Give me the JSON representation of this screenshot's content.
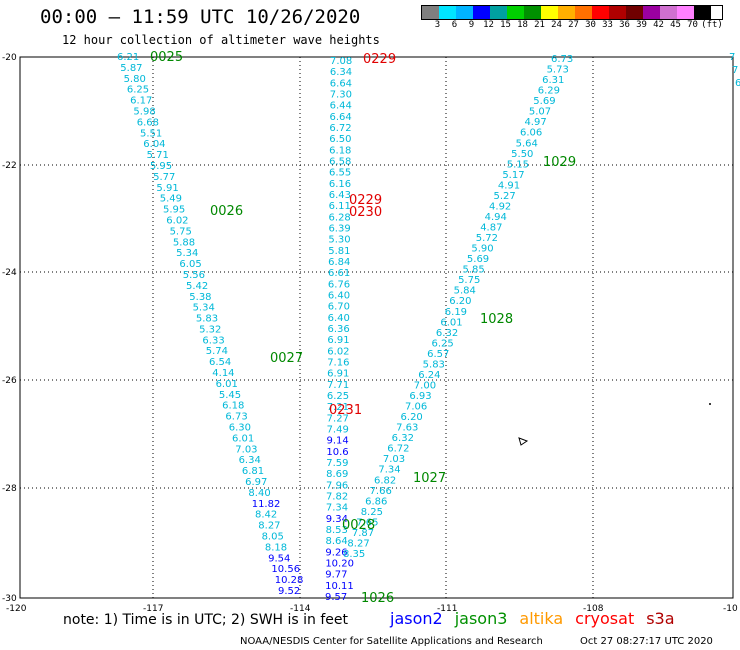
{
  "header": {
    "title": "00:00 – 11:59 UTC 10/26/2020",
    "subtitle": "12 hour collection of altimeter wave heights"
  },
  "colorbar": {
    "colors": [
      "#7f7f7f",
      "#00e5ff",
      "#00b4ff",
      "#0000ff",
      "#00a0a0",
      "#00d000",
      "#009000",
      "#ffff00",
      "#ffb000",
      "#ff7000",
      "#ff0000",
      "#b00000",
      "#700000",
      "#9b00a0",
      "#d070d0",
      "#ff80ff",
      "#000000"
    ],
    "ticks": [
      "3",
      "6",
      "9",
      "12",
      "15",
      "18",
      "21",
      "24",
      "27",
      "30",
      "33",
      "36",
      "39",
      "42",
      "45",
      "70"
    ],
    "unit": "(ft)"
  },
  "axes": {
    "lat_labels": [
      "-20",
      "-22",
      "-24",
      "-26",
      "-28",
      "-30"
    ],
    "lon_labels": [
      "-120",
      "-117",
      "-114",
      "-111",
      "-108",
      "-10"
    ]
  },
  "time_labels": [
    {
      "text": "0025",
      "color": "green"
    },
    {
      "text": "0026",
      "color": "green"
    },
    {
      "text": "0027",
      "color": "green"
    },
    {
      "text": "0229",
      "color": "red"
    },
    {
      "text": "0229",
      "color": "red"
    },
    {
      "text": "0230",
      "color": "red"
    },
    {
      "text": "0231",
      "color": "red"
    },
    {
      "text": "0028",
      "color": "green"
    },
    {
      "text": "1026",
      "color": "green"
    },
    {
      "text": "1027",
      "color": "green"
    },
    {
      "text": "1028",
      "color": "green"
    },
    {
      "text": "1029",
      "color": "green"
    }
  ],
  "tracks": {
    "track_a_values": [
      "6.21",
      "5.87",
      "5.80",
      "6.25",
      "6.17",
      "5.98",
      "6.68",
      "5.51",
      "6.04",
      "5.71",
      "5.95",
      "5.77",
      "5.91",
      "5.49",
      "5.95",
      "6.02",
      "5.75",
      "5.88",
      "5.34",
      "6.05",
      "5.56",
      "5.42",
      "5.38",
      "5.34",
      "5.83",
      "5.32",
      "6.33",
      "5.74",
      "6.54",
      "4.14",
      "6.01",
      "5.45",
      "6.18",
      "6.73",
      "6.30",
      "6.01",
      "7.03",
      "6.34",
      "6.81",
      "6.97",
      "8.40",
      "11.82",
      "8.42",
      "8.27",
      "8.05",
      "8.18",
      "9.54",
      "10.56",
      "10.28",
      "9.52"
    ],
    "track_b_values": [
      "7.08",
      "6.34",
      "6.64",
      "7.30",
      "6.44",
      "6.64",
      "6.72",
      "6.50",
      "6.18",
      "6.58",
      "6.55",
      "6.16",
      "6.43",
      "6.11",
      "6.28",
      "6.39",
      "5.30",
      "5.81",
      "6.84",
      "6.61",
      "6.76",
      "6.40",
      "6.70",
      "6.40",
      "6.36",
      "6.91",
      "6.02",
      "7.16",
      "6.91",
      "7.71",
      "6.25",
      "7.21",
      "7.27",
      "7.49",
      "9.14",
      "10.6",
      "7.59",
      "8.69",
      "7.96",
      "7.82",
      "7.34",
      "9.34",
      "8.53",
      "8.64",
      "9.26",
      "10.20",
      "9.77",
      "10.11",
      "9.57"
    ],
    "track_c_values": [
      "6.73",
      "5.73",
      "6.31",
      "6.29",
      "5.69",
      "5.07",
      "4.97",
      "6.06",
      "5.64",
      "5.50",
      "5.15",
      "5.17",
      "4.91",
      "5.27",
      "4.92",
      "4.94",
      "4.87",
      "5.72",
      "5.90",
      "5.69",
      "5.85",
      "5.75",
      "5.84",
      "6.20",
      "6.19",
      "6.01",
      "6.32",
      "6.25",
      "6.57",
      "5.83",
      "6.24",
      "7.00",
      "6.93",
      "7.06",
      "6.20",
      "7.63",
      "6.32",
      "6.72",
      "7.03",
      "7.34",
      "6.82",
      "7.66",
      "6.86",
      "8.25",
      "7.65",
      "7.87",
      "8.27",
      "8.35"
    ],
    "right_edge_values": [
      "7",
      "7",
      "6"
    ]
  },
  "notes": "note:  1) Time is in UTC;  2) SWH is in feet",
  "legend": [
    {
      "name": "jason2",
      "color": "#0000ff"
    },
    {
      "name": "jason3",
      "color": "#009000"
    },
    {
      "name": "altika",
      "color": "#ff9900"
    },
    {
      "name": "cryosat",
      "color": "#ff0000"
    },
    {
      "name": "s3a",
      "color": "#b00000"
    }
  ],
  "footer": {
    "center": "NOAA/NESDIS Center for Satellite Applications and Research",
    "right": "Oct 27 08:27:17 UTC 2020"
  }
}
